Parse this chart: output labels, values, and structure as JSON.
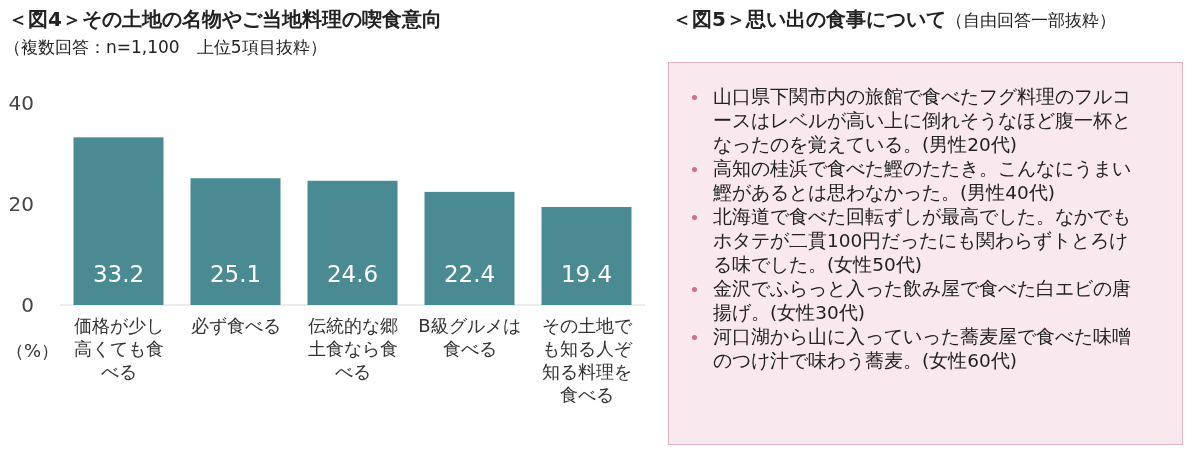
{
  "chart_data": [
    {
      "type": "bar",
      "title": "＜図4＞その土地の名物やご当地料理の喫食意向",
      "subtitle": "（複数回答：n=1,100　上位5項目抜粋）",
      "ylabel": "（%）",
      "categories": [
        "価格が少し高くても食べる",
        "必ず食べる",
        "伝統的な郷土食なら食べる",
        "B級グルメは食べる",
        "その土地でも知る人ぞ知る料理を食べる"
      ],
      "values": [
        33.2,
        25.1,
        24.6,
        22.4,
        19.4
      ],
      "color": "#4a8a92",
      "ylim": [
        0,
        40
      ],
      "yticks": [
        0,
        20,
        40
      ],
      "data_labels": true,
      "grid": false
    },
    {
      "type": "other",
      "title": "＜図5＞思い出の食事について",
      "subtitle": "（自由回答一部抜粋）",
      "annotations": [
        "山口県下関市内の旅館で食べたフグ料理のフルコースはレベルが高い上に倒れそうなほど腹一杯となったのを覚えている。(男性20代)",
        "高知の桂浜で食べた鰹のたたき。こんなにうまい鰹があるとは思わなかった。(男性40代)",
        "北海道で食べた回転ずしが最高でした。なかでもホタテが二貫100円だったにも関わらずトとろける味でした。(女性50代)",
        "金沢でふらっと入った飲み屋で食べた白エビの唐揚げ。(女性30代)",
        "河口湖から山に入っていった蕎麦屋で食べた味噌のつけ汁で味わう蕎麦。(女性60代)"
      ]
    }
  ]
}
